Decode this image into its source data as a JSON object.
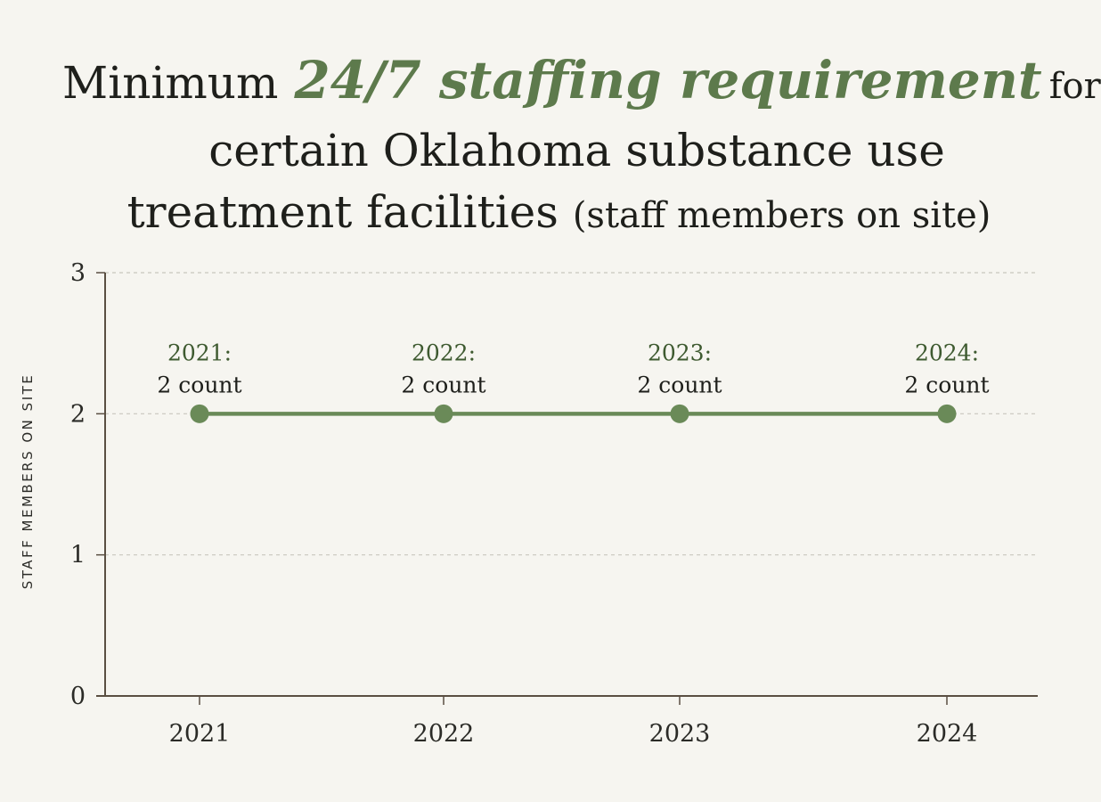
{
  "title": {
    "pre": "Minimum",
    "accent": "24/7 staffing requirement",
    "post": "for",
    "line2": "certain Oklahoma substance use",
    "line3_main": "treatment facilities",
    "line3_paren": "(staff members on site)"
  },
  "chart_data": {
    "type": "line",
    "title": "Minimum 24/7 staffing requirement for certain Oklahoma substance use treatment facilities (staff members on site)",
    "ylabel": "STAFF MEMBERS ON SITE",
    "xlabel": "",
    "categories": [
      "2021",
      "2022",
      "2023",
      "2024"
    ],
    "series": [
      {
        "values": [
          2,
          2,
          2,
          2
        ]
      }
    ],
    "data_labels": [
      {
        "year": "2021:",
        "value": "2 count"
      },
      {
        "year": "2022:",
        "value": "2 count"
      },
      {
        "year": "2023:",
        "value": "2 count"
      },
      {
        "year": "2024:",
        "value": "2 count"
      }
    ],
    "yticks": [
      "0",
      "1",
      "2",
      "3"
    ],
    "ylim": [
      0,
      3
    ],
    "grid": true,
    "legend": "none",
    "colors": {
      "line": "#6a8a58",
      "grid": "#c8c6bd",
      "axis": "#5a4f42"
    }
  }
}
